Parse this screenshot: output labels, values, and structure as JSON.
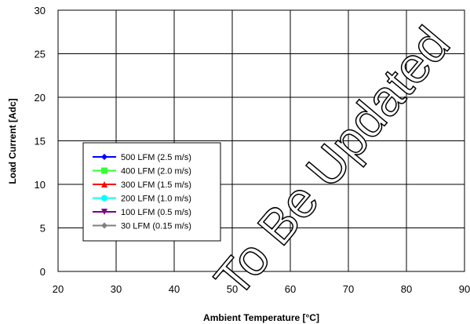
{
  "chart_data": {
    "type": "line",
    "title": "",
    "xlabel": "Ambient Temperature [°C]",
    "ylabel": "Load Current  [Adc]",
    "xlim": [
      20,
      90
    ],
    "ylim": [
      0,
      30
    ],
    "x_ticks": [
      20,
      30,
      40,
      50,
      60,
      70,
      80,
      90
    ],
    "y_ticks": [
      0,
      5,
      10,
      15,
      20,
      25,
      30
    ],
    "grid": true,
    "legend_position": "left",
    "series": [
      {
        "name": "500 LFM (2.5 m/s)",
        "color": "#0000ff",
        "marker": "diamond",
        "x": [],
        "y": []
      },
      {
        "name": "400 LFM (2.0 m/s)",
        "color": "#33ff33",
        "marker": "square",
        "x": [],
        "y": []
      },
      {
        "name": "300 LFM (1.5 m/s)",
        "color": "#ff0000",
        "marker": "triangle",
        "x": [],
        "y": []
      },
      {
        "name": "200 LFM (1.0 m/s)",
        "color": "#00ffff",
        "marker": "circle",
        "x": [],
        "y": []
      },
      {
        "name": "100 LFM (0.5 m/s)",
        "color": "#800080",
        "marker": "triangle-down",
        "x": [],
        "y": []
      },
      {
        "name": "  30 LFM (0.15 m/s)",
        "color": "#808080",
        "marker": "diamond",
        "x": [],
        "y": []
      }
    ],
    "annotations": [
      "To Be Updated"
    ]
  }
}
